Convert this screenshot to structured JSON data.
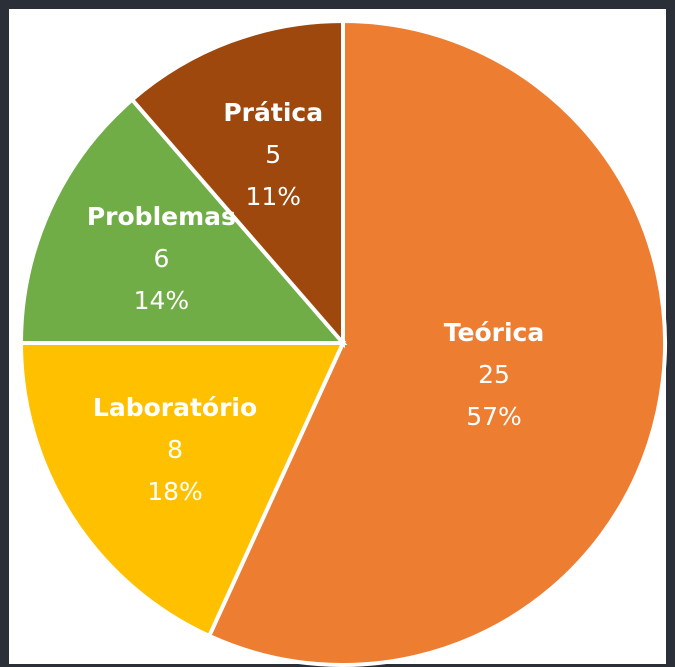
{
  "chart_data": {
    "type": "pie",
    "categories": [
      "Teórica",
      "Laboratório",
      "Problemas",
      "Prática"
    ],
    "values": [
      25,
      8,
      6,
      5
    ],
    "percent_labels": [
      "57%",
      "18%",
      "14%",
      "11%"
    ],
    "colors": [
      "#ED7D31",
      "#FFC000",
      "#70AD47",
      "#9E480E"
    ]
  }
}
